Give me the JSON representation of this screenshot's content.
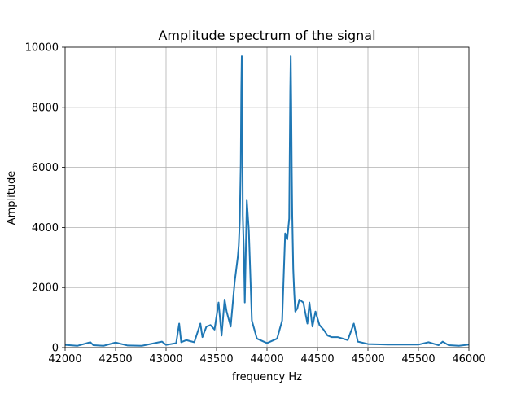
{
  "chart_data": {
    "type": "line",
    "title": "Amplitude spectrum of the signal",
    "xlabel": "frequency Hz",
    "ylabel": "Amplitude",
    "xlim": [
      42000,
      46000
    ],
    "ylim": [
      0,
      10000
    ],
    "xticks": [
      42000,
      42500,
      43000,
      43500,
      44000,
      44500,
      45000,
      45500,
      46000
    ],
    "yticks": [
      0,
      2000,
      4000,
      6000,
      8000,
      10000
    ],
    "xtick_labels": [
      "42000",
      "42500",
      "43000",
      "43500",
      "44000",
      "44500",
      "45000",
      "45500",
      "46000"
    ],
    "ytick_labels": [
      "0",
      "2000",
      "4000",
      "6000",
      "8000",
      "10000"
    ],
    "grid": true,
    "series": [
      {
        "color": "#1f77b4",
        "x": [
          42000,
          42120,
          42250,
          42280,
          42380,
          42500,
          42620,
          42760,
          42960,
          43000,
          43100,
          43130,
          43150,
          43200,
          43280,
          43340,
          43360,
          43400,
          43440,
          43480,
          43520,
          43550,
          43580,
          43600,
          43640,
          43680,
          43710,
          43720,
          43730,
          43740,
          43745,
          43750,
          43755,
          43760,
          43765,
          43770,
          43780,
          43800,
          43820,
          43850,
          43900,
          44000,
          44100,
          44150,
          44180,
          44200,
          44220,
          44230,
          44235,
          44240,
          44245,
          44250,
          44255,
          44260,
          44270,
          44280,
          44300,
          44320,
          44360,
          44400,
          44420,
          44450,
          44480,
          44520,
          44560,
          44600,
          44640,
          44700,
          44800,
          44860,
          44900,
          45000,
          45200,
          45500,
          45600,
          45700,
          45740,
          45800,
          45900,
          46000
        ],
        "y": [
          90,
          60,
          180,
          80,
          60,
          170,
          70,
          60,
          200,
          90,
          150,
          800,
          180,
          250,
          180,
          800,
          350,
          700,
          750,
          600,
          1500,
          400,
          1600,
          1200,
          700,
          2200,
          3000,
          3400,
          4200,
          6100,
          8500,
          9700,
          8000,
          4400,
          3800,
          3300,
          1500,
          4900,
          3900,
          900,
          300,
          150,
          300,
          900,
          3800,
          3600,
          4300,
          8500,
          9700,
          8200,
          6000,
          4400,
          3500,
          2600,
          1800,
          1200,
          1300,
          1600,
          1500,
          800,
          1500,
          700,
          1200,
          750,
          600,
          400,
          350,
          350,
          250,
          800,
          200,
          120,
          100,
          100,
          180,
          80,
          200,
          80,
          60,
          100
        ]
      }
    ]
  }
}
